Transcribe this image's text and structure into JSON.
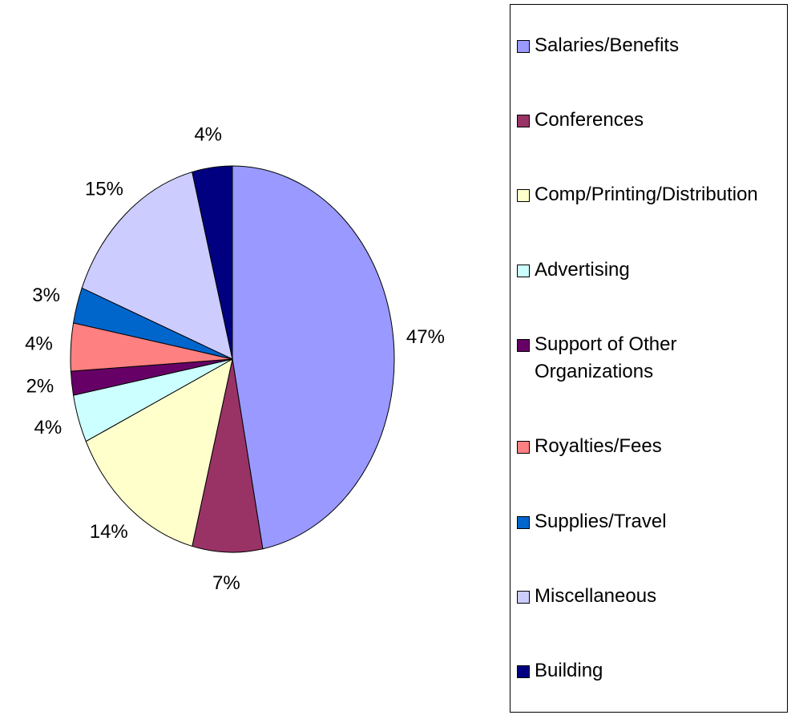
{
  "chart_data": {
    "type": "pie",
    "categories": [
      "Salaries/Benefits",
      "Conferences",
      "Comp/Printing/Distribution",
      "Advertising",
      "Support of Other Organizations",
      "Royalties/Fees",
      "Supplies/Travel",
      "Miscellaneous",
      "Building"
    ],
    "values": [
      47,
      7,
      14,
      4,
      2,
      4,
      3,
      15,
      4
    ],
    "value_labels": [
      "47%",
      "7%",
      "14%",
      "4%",
      "2%",
      "4%",
      "3%",
      "15%",
      "4%"
    ],
    "colors": [
      "#9999ff",
      "#993366",
      "#ffffcc",
      "#ccffff",
      "#660066",
      "#ff8080",
      "#0066cc",
      "#ccccff",
      "#000080"
    ],
    "legend": "right"
  }
}
